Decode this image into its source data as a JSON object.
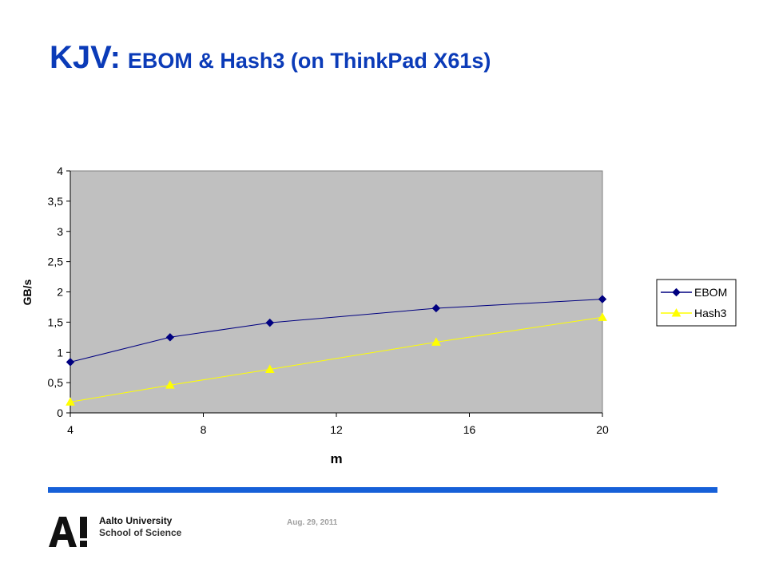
{
  "slide": {
    "title_main": "KJV:",
    "title_sub": "EBOM & Hash3 (on ThinkPad X61s)",
    "footer_date": "Aug. 29, 2011",
    "logo_mark": "A!",
    "logo_line1": "Aalto University",
    "logo_line2": "School of Science"
  },
  "colors": {
    "title": "#0b3bb8",
    "rule": "#1660d8",
    "plot_bg": "#c0c0c0",
    "ebom": "#000080",
    "hash3": "#ffff00"
  },
  "chart_data": {
    "type": "line",
    "title": "",
    "xlabel": "m",
    "ylabel": "GB/s",
    "x": [
      4,
      7,
      10,
      15,
      20
    ],
    "xlim": [
      4,
      20
    ],
    "ylim": [
      0,
      4
    ],
    "xticks": [
      4,
      8,
      12,
      16,
      20
    ],
    "xtick_labels": [
      "4",
      "8",
      "12",
      "16",
      "20"
    ],
    "yticks": [
      0,
      0.5,
      1,
      1.5,
      2,
      2.5,
      3,
      3.5,
      4
    ],
    "ytick_labels": [
      "0",
      "0,5",
      "1",
      "1,5",
      "2",
      "2,5",
      "3",
      "3,5",
      "4"
    ],
    "grid": false,
    "legend_position": "right",
    "series": [
      {
        "name": "EBOM",
        "marker": "diamond",
        "color": "#000080",
        "values": [
          0.84,
          1.25,
          1.49,
          1.73,
          1.88
        ]
      },
      {
        "name": "Hash3",
        "marker": "triangle",
        "color": "#ffff00",
        "values": [
          0.18,
          0.46,
          0.72,
          1.17,
          1.58
        ]
      }
    ]
  }
}
